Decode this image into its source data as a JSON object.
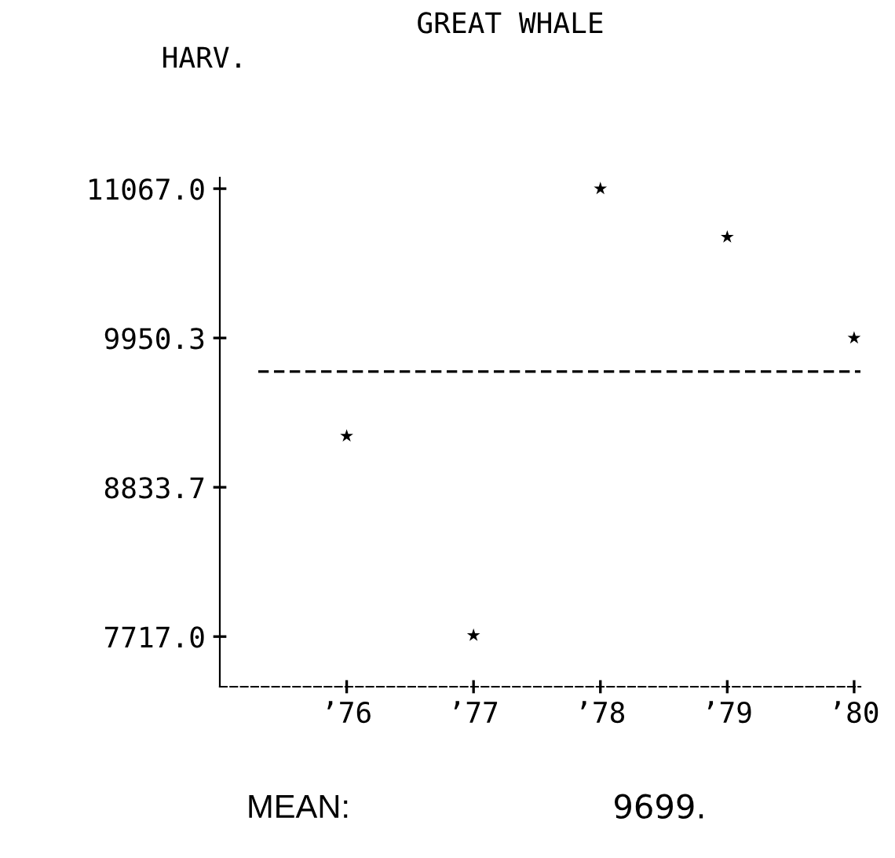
{
  "chart_data": {
    "type": "scatter",
    "title": "GREAT WHALE",
    "ylabel": "HARV.",
    "categories": [
      "’76",
      "’77",
      "’78",
      "’79",
      "’80"
    ],
    "values": [
      9217,
      7726,
      11067,
      10705,
      9950
    ],
    "color": "#000000",
    "marker": "star",
    "ylim": [
      7342,
      11150
    ],
    "yticks": [
      {
        "value": 11067,
        "label": "11067.0"
      },
      {
        "value": 9950.3,
        "label": "9950.3"
      },
      {
        "value": 8833.7,
        "label": "8833.7"
      },
      {
        "value": 7717,
        "label": "7717.0"
      }
    ],
    "ref_lines": [
      {
        "axis": "y",
        "value": 9699,
        "line_style": "dashed",
        "color": "#000000"
      }
    ],
    "annotations": [
      "MEAN:",
      "9699."
    ],
    "grid": false,
    "legend": false
  }
}
